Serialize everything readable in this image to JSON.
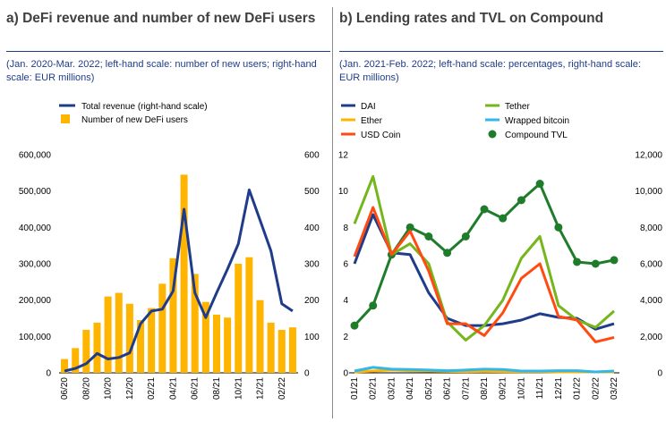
{
  "panel_a": {
    "title": "a) DeFi revenue and number of new DeFi users",
    "subtitle": "(Jan. 2020-Mar. 2022; left-hand scale: number of new users; right-hand scale: EUR millions)"
  },
  "panel_b": {
    "title": "b) Lending rates and TVL on Compound",
    "subtitle": "(Jan. 2021-Feb. 2022; left-hand scale: percentages, right-hand scale: EUR millions)"
  },
  "chart_data": [
    {
      "type": "bar",
      "ylim": [
        0,
        600000
      ],
      "y2lim": [
        0,
        600
      ],
      "yticks": [
        "0",
        "100,000",
        "200,000",
        "300,000",
        "400,000",
        "500,000",
        "600,000"
      ],
      "y2ticks": [
        "0",
        "100",
        "200",
        "300",
        "400",
        "500",
        "600"
      ],
      "xtick_labels": [
        "06/20",
        "08/20",
        "10/20",
        "12/20",
        "02/21",
        "04/21",
        "06/21",
        "08/21",
        "10/21",
        "12/21",
        "02/22"
      ],
      "categories": [
        "06/20",
        "07/20",
        "08/20",
        "09/20",
        "10/20",
        "11/20",
        "12/20",
        "01/21",
        "02/21",
        "03/21",
        "04/21",
        "05/21",
        "06/21",
        "07/21",
        "08/21",
        "09/21",
        "10/21",
        "11/21",
        "12/21",
        "01/22",
        "02/22",
        "03/22"
      ],
      "series": [
        {
          "name": "Total revenue (right-hand scale)",
          "type": "line",
          "axis": "right",
          "color": "#1f3c8a",
          "values": [
            5,
            12,
            25,
            53,
            38,
            42,
            55,
            135,
            170,
            175,
            225,
            450,
            220,
            152,
            220,
            285,
            355,
            503,
            420,
            335,
            190,
            170
          ]
        },
        {
          "name": "Number of new DeFi users",
          "type": "bar",
          "axis": "left",
          "color": "#ffb400",
          "values": [
            38000,
            68000,
            118000,
            138000,
            210000,
            220000,
            190000,
            145000,
            178000,
            245000,
            315000,
            545000,
            272000,
            195000,
            160000,
            152000,
            300000,
            318000,
            200000,
            138000,
            118000,
            125000
          ]
        }
      ],
      "legend_position": "top"
    },
    {
      "type": "line",
      "ylim": [
        0,
        12
      ],
      "y2lim": [
        0,
        12000
      ],
      "yticks": [
        "0",
        "2",
        "4",
        "6",
        "8",
        "10",
        "12"
      ],
      "y2ticks": [
        "0",
        "2,000",
        "4,000",
        "6,000",
        "8,000",
        "10,000",
        "12,000"
      ],
      "categories": [
        "01/21",
        "02/21",
        "03/21",
        "04/21",
        "05/21",
        "06/21",
        "07/21",
        "08/21",
        "09/21",
        "10/21",
        "11/21",
        "12/21",
        "01/22",
        "02/22",
        "03/22"
      ],
      "series": [
        {
          "name": "DAI",
          "axis": "left",
          "color": "#1f3c8a",
          "values": [
            6.0,
            8.7,
            6.6,
            6.5,
            4.4,
            3.0,
            2.6,
            2.6,
            2.7,
            2.9,
            3.25,
            3.05,
            3.0,
            2.4,
            2.7
          ]
        },
        {
          "name": "Tether",
          "axis": "left",
          "color": "#74b61c",
          "values": [
            8.2,
            10.8,
            6.5,
            7.1,
            6.0,
            2.8,
            1.8,
            2.6,
            4.0,
            6.3,
            7.5,
            3.7,
            2.9,
            2.5,
            3.4
          ]
        },
        {
          "name": "Ether",
          "axis": "left",
          "color": "#ffb400",
          "values": [
            0.05,
            0.1,
            0.15,
            0.12,
            0.1,
            0.08,
            0.07,
            0.08,
            0.07,
            0.06,
            0.06,
            0.05,
            0.05,
            0.05,
            0.05
          ]
        },
        {
          "name": "Wrapped bitcoin",
          "axis": "left",
          "color": "#33b7e6",
          "values": [
            0.1,
            0.3,
            0.2,
            0.18,
            0.15,
            0.12,
            0.15,
            0.2,
            0.18,
            0.1,
            0.1,
            0.12,
            0.12,
            0.05,
            0.1
          ]
        },
        {
          "name": "USD Coin",
          "axis": "left",
          "color": "#ff4b12",
          "values": [
            6.4,
            9.1,
            6.5,
            7.8,
            5.6,
            2.7,
            2.7,
            2.05,
            3.3,
            5.2,
            6.0,
            3.1,
            2.9,
            1.7,
            1.95
          ]
        },
        {
          "name": "Compound TVL",
          "axis": "right",
          "color": "#1e7c2a",
          "markers": true,
          "values": [
            2600,
            3700,
            6500,
            8000,
            7500,
            6600,
            7500,
            9000,
            8500,
            9500,
            10400,
            8000,
            6100,
            6000,
            6200
          ]
        }
      ],
      "legend_position": "top"
    }
  ]
}
